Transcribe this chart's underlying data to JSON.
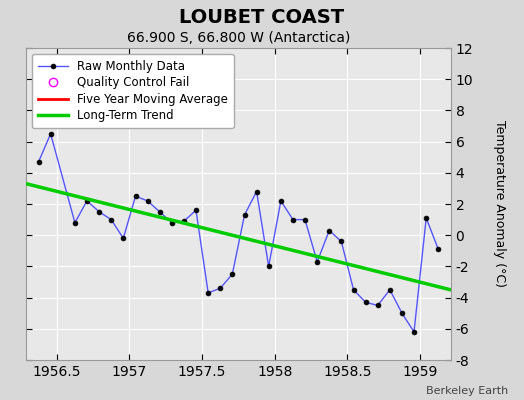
{
  "title": "LOUBET COAST",
  "subtitle": "66.900 S, 66.800 W (Antarctica)",
  "ylabel": "Temperature Anomaly (°C)",
  "attribution": "Berkeley Earth",
  "xlim": [
    1956.29,
    1959.21
  ],
  "ylim": [
    -8,
    12
  ],
  "yticks": [
    -8,
    -6,
    -4,
    -2,
    0,
    2,
    4,
    6,
    8,
    10,
    12
  ],
  "xticks": [
    1956.5,
    1957.0,
    1957.5,
    1958.0,
    1958.5,
    1959.0
  ],
  "xticklabels": [
    "1956.5",
    "1957",
    "1957.5",
    "1958",
    "1958.5",
    "1959"
  ],
  "raw_x": [
    1956.375,
    1956.458,
    1956.625,
    1956.708,
    1956.792,
    1956.875,
    1956.958,
    1957.042,
    1957.125,
    1957.208,
    1957.292,
    1957.375,
    1957.458,
    1957.542,
    1957.625,
    1957.708,
    1957.792,
    1957.875,
    1957.958,
    1958.042,
    1958.125,
    1958.208,
    1958.292,
    1958.375,
    1958.458,
    1958.542,
    1958.625,
    1958.708,
    1958.792,
    1958.875,
    1958.958,
    1959.042,
    1959.125
  ],
  "raw_y": [
    4.7,
    6.5,
    0.8,
    2.2,
    1.5,
    1.0,
    -0.2,
    2.5,
    2.2,
    1.5,
    0.8,
    0.9,
    1.6,
    -3.7,
    -3.4,
    -2.5,
    1.3,
    2.8,
    -2.0,
    2.2,
    1.0,
    1.0,
    -1.7,
    0.3,
    -0.4,
    -3.5,
    -4.3,
    -4.5,
    -3.5,
    -5.0,
    -6.2,
    1.1,
    -0.9
  ],
  "trend_x": [
    1956.29,
    1959.21
  ],
  "trend_y": [
    3.3,
    -3.5
  ],
  "bg_color": "#d8d8d8",
  "plot_bg_color": "#e8e8e8",
  "grid_color": "#ffffff",
  "raw_line_color": "#5555ff",
  "raw_marker_color": "#000000",
  "trend_color": "#00cc00",
  "ma_color": "#ff0000",
  "legend_bg": "#ffffff",
  "title_fontsize": 14,
  "subtitle_fontsize": 10,
  "tick_fontsize": 10,
  "ylabel_fontsize": 9
}
